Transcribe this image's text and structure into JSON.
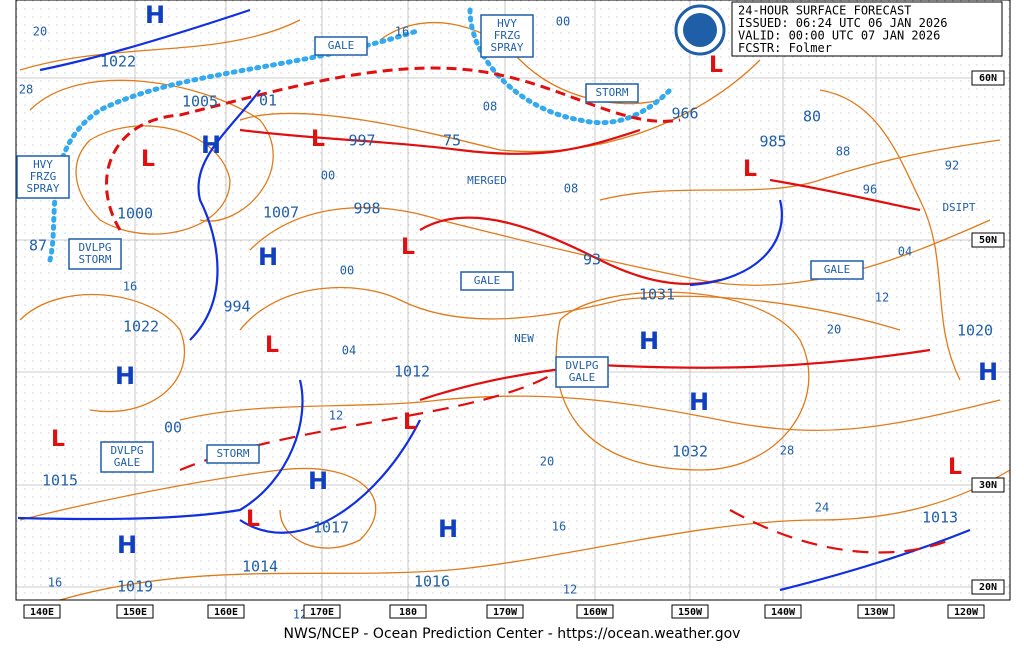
{
  "header": {
    "lines": [
      "24-HOUR SURFACE FORECAST",
      "ISSUED: 06:24 UTC 06 JAN 2026",
      "VALID:  00:00 UTC 07 JAN 2026",
      "FCSTR:  Folmer"
    ]
  },
  "pressure_labels": [
    "1022",
    "1005",
    "01",
    "997",
    "75",
    "1000",
    "1007",
    "998",
    "87",
    "994",
    "1022",
    "00",
    "1015",
    "1012",
    "1019",
    "1014",
    "1017",
    "1016",
    "1032",
    "1031",
    "93",
    "966",
    "985",
    "80",
    "1020",
    "1013"
  ],
  "isobar_labels": [
    "20",
    "28",
    "16",
    "00",
    "08",
    "00",
    "08",
    "00",
    "16",
    "04",
    "12",
    "20",
    "16",
    "12",
    "88",
    "96",
    "92",
    "04",
    "12",
    "20",
    "28",
    "24",
    "16",
    "12"
  ],
  "highs": [
    "H",
    "H",
    "H",
    "H",
    "H",
    "H",
    "H",
    "H",
    "H",
    "H"
  ],
  "lows": [
    "L",
    "L",
    "L",
    "L",
    "L",
    "L",
    "L",
    "L",
    "L",
    "L"
  ],
  "warnings": [
    [
      "GALE"
    ],
    [
      "HVY",
      "FRZG",
      "SPRAY"
    ],
    [
      "STORM"
    ],
    [
      "HVY",
      "FRZG",
      "SPRAY"
    ],
    [
      "DVLPG",
      "STORM"
    ],
    [
      "GALE"
    ],
    [
      "GALE"
    ],
    [
      "DVLPG",
      "GALE"
    ],
    [
      "DVLPG",
      "GALE"
    ],
    [
      "STORM"
    ]
  ],
  "notes": [
    "MERGED",
    "NEW",
    "DSIPT"
  ],
  "longitudes": [
    "140E",
    "150E",
    "160E",
    "170E",
    "180",
    "170W",
    "160W",
    "150W",
    "140W",
    "130W",
    "120W"
  ],
  "latitudes": [
    "60N",
    "50N",
    "30N",
    "20N"
  ],
  "footer": "NWS/NCEP - Ocean Prediction Center - https://ocean.weather.gov"
}
